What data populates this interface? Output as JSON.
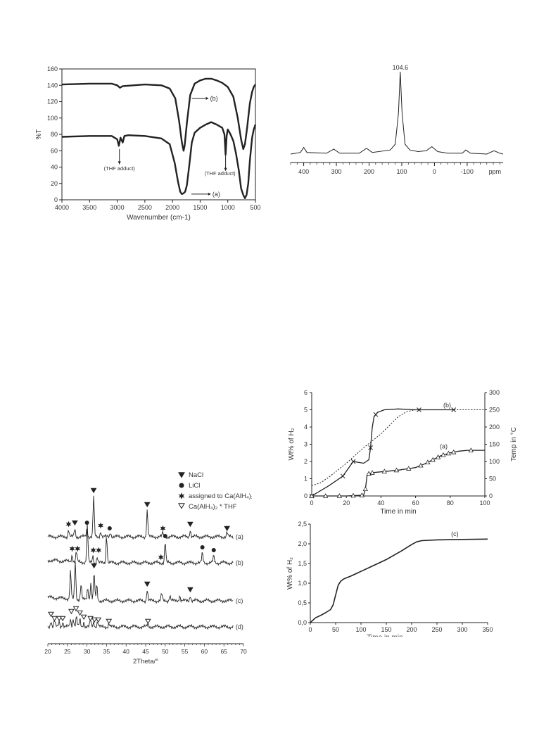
{
  "colors": {
    "ink": "#222222",
    "axis": "#333333"
  },
  "icons": {
    "nacl": "filled-down-triangle",
    "licl": "filled-circle",
    "ca_alh4": "six-point-star",
    "ca_thf": "open-down-triangle"
  },
  "chart_data": [
    {
      "id": "ir",
      "type": "line",
      "title": "",
      "xlabel": "Wavenumber (cm-1)",
      "ylabel": "%T",
      "xlim": [
        4000,
        500
      ],
      "ylim": [
        0,
        160
      ],
      "xticks": [
        "4000",
        "3500",
        "3000",
        "2500",
        "2000",
        "1500",
        "1000",
        "500"
      ],
      "yticks": [
        "0",
        "20",
        "40",
        "60",
        "80",
        "100",
        "120",
        "140",
        "160"
      ],
      "annotations": [
        "(THF adduct)",
        "(THF adduct)",
        "(b)",
        "(a)"
      ],
      "series": [
        {
          "name": "(b)",
          "x": [
            4000,
            3500,
            3100,
            3000,
            2950,
            2900,
            2500,
            2200,
            2050,
            1950,
            1880,
            1830,
            1800,
            1780,
            1740,
            1680,
            1600,
            1500,
            1400,
            1300,
            1200,
            1100,
            1000,
            900,
            820,
            760,
            720,
            690,
            650,
            600,
            560,
            530,
            500
          ],
          "y": [
            141,
            142,
            142,
            140,
            137,
            139,
            141,
            140,
            136,
            124,
            96,
            70,
            60,
            66,
            94,
            128,
            142,
            146,
            148,
            148,
            146,
            143,
            138,
            126,
            100,
            74,
            62,
            68,
            88,
            118,
            132,
            138,
            141
          ]
        },
        {
          "name": "(a)",
          "x": [
            4000,
            3500,
            3100,
            3000,
            2970,
            2940,
            2900,
            2870,
            2800,
            2500,
            2200,
            2050,
            1960,
            1900,
            1860,
            1830,
            1800,
            1770,
            1740,
            1700,
            1650,
            1600,
            1500,
            1400,
            1300,
            1200,
            1100,
            1060,
            1040,
            1020,
            1000,
            950,
            900,
            850,
            800,
            760,
            720,
            690,
            660,
            630,
            600,
            560,
            530,
            500
          ],
          "y": [
            77,
            78,
            78,
            74,
            66,
            76,
            70,
            78,
            79,
            78,
            75,
            68,
            45,
            22,
            10,
            7,
            8,
            10,
            18,
            40,
            70,
            82,
            88,
            92,
            95,
            92,
            88,
            80,
            55,
            78,
            86,
            80,
            72,
            56,
            36,
            14,
            6,
            2,
            6,
            20,
            48,
            76,
            86,
            92
          ]
        }
      ]
    },
    {
      "id": "nmr",
      "type": "line",
      "title": "",
      "xlabel": "ppm",
      "xlim": [
        440,
        -210
      ],
      "xticks": [
        "400",
        "300",
        "200",
        "100",
        "0",
        "-100"
      ],
      "peak_label": "104.6",
      "series": [
        {
          "name": "",
          "x": [
            440,
            410,
            400,
            390,
            330,
            308,
            290,
            230,
            208,
            190,
            135,
            120,
            110,
            104.6,
            99,
            90,
            75,
            50,
            25,
            8,
            -10,
            -40,
            -85,
            -96,
            -110,
            -160,
            -182,
            -200,
            -210
          ],
          "y": [
            0.0,
            0.02,
            0.08,
            0.02,
            0.01,
            0.06,
            0.01,
            0.01,
            0.07,
            0.02,
            0.05,
            0.12,
            0.5,
            1.0,
            0.5,
            0.12,
            0.05,
            0.03,
            0.04,
            0.09,
            0.03,
            0.01,
            0.01,
            0.05,
            0.01,
            0.0,
            0.04,
            0.01,
            0.0
          ]
        }
      ]
    },
    {
      "id": "xrd",
      "type": "line",
      "title": "",
      "xlabel": "2Theta/°",
      "xlim": [
        20,
        70
      ],
      "xticks": [
        "20",
        "25",
        "30",
        "35",
        "40",
        "45",
        "50",
        "55",
        "60",
        "65",
        "70"
      ],
      "legend": [
        "NaCl",
        "LiCl",
        "assigned to Ca(AlH₄)₂",
        "Ca(AlH₄)₂ * THF"
      ],
      "series": [
        {
          "name": "(a)",
          "peaks": [
            [
              25.3,
              10
            ],
            [
              26.9,
              12
            ],
            [
              30.0,
              12
            ],
            [
              31.7,
              58
            ],
            [
              33.5,
              8
            ],
            [
              36.0,
              7
            ],
            [
              45.4,
              38
            ],
            [
              49.4,
              6
            ],
            [
              56.4,
              10
            ],
            [
              65.8,
              6
            ]
          ]
        },
        {
          "name": "(b)",
          "peaks": [
            [
              26.2,
              10
            ],
            [
              27.3,
              14
            ],
            [
              30.1,
              55
            ],
            [
              31.5,
              10
            ],
            [
              32.6,
              8
            ],
            [
              35.0,
              40
            ],
            [
              50.0,
              30
            ],
            [
              59.5,
              14
            ],
            [
              62.4,
              10
            ]
          ]
        },
        {
          "name": "(c)",
          "peaks": [
            [
              25.8,
              40
            ],
            [
              27.0,
              55
            ],
            [
              28.5,
              22
            ],
            [
              30.2,
              18
            ],
            [
              31.0,
              25
            ],
            [
              31.8,
              40
            ],
            [
              32.5,
              22
            ],
            [
              45.4,
              16
            ],
            [
              49.1,
              10
            ],
            [
              51.2,
              8
            ],
            [
              53.7,
              8
            ],
            [
              56.4,
              8
            ]
          ]
        },
        {
          "name": "(d)",
          "peaks": [
            [
              20.8,
              10
            ],
            [
              21.7,
              10
            ],
            [
              22.9,
              9
            ],
            [
              23.8,
              8
            ],
            [
              25.8,
              12
            ],
            [
              26.5,
              14
            ],
            [
              27.3,
              16
            ],
            [
              28.2,
              12
            ],
            [
              29.2,
              8
            ],
            [
              30.9,
              10
            ],
            [
              31.7,
              8
            ],
            [
              32.7,
              8
            ],
            [
              35.6,
              5
            ],
            [
              45.6,
              5
            ]
          ]
        }
      ]
    },
    {
      "id": "tpd",
      "type": "line",
      "title": "",
      "xlabel": "Time in min",
      "ylabel": "Wt% of H₂",
      "ylabel2": "Temp in °C",
      "xlim": [
        0,
        100
      ],
      "ylim": [
        0,
        6
      ],
      "ylim2": [
        0,
        300
      ],
      "xticks": [
        "0",
        "20",
        "40",
        "60",
        "80",
        "100"
      ],
      "yticks": [
        "0",
        "1",
        "2",
        "3",
        "4",
        "5",
        "6"
      ],
      "yticks2": [
        "0",
        "50",
        "100",
        "150",
        "200",
        "250",
        "300"
      ],
      "series": [
        {
          "name": "(b)",
          "marker": "x",
          "x": [
            0,
            10,
            18,
            24,
            30,
            33,
            34,
            35,
            36,
            38,
            42,
            50,
            60,
            70,
            80,
            82
          ],
          "y": [
            0,
            0.6,
            1.15,
            2.0,
            1.9,
            2.1,
            2.8,
            4.0,
            4.6,
            4.85,
            5.0,
            5.05,
            5.0,
            5.0,
            5.0,
            5.0
          ],
          "markers_x": [
            0,
            18,
            24,
            34,
            37,
            62,
            82
          ]
        },
        {
          "name": "(a)",
          "marker": "triangle",
          "x": [
            0,
            20,
            30,
            31,
            32,
            33,
            35,
            40,
            50,
            60,
            65,
            70,
            75,
            80,
            85,
            90,
            100
          ],
          "y": [
            0,
            0,
            0.05,
            0.4,
            1.2,
            1.3,
            1.35,
            1.4,
            1.5,
            1.65,
            1.85,
            2.1,
            2.35,
            2.5,
            2.6,
            2.65,
            2.65
          ],
          "markers_x": [
            0,
            8,
            16,
            24,
            29,
            31,
            33,
            35,
            42,
            49,
            56,
            63,
            67,
            70,
            73,
            76,
            79,
            82,
            92
          ]
        },
        {
          "name": "temperature",
          "dashed": true,
          "axis": "right",
          "x": [
            0,
            5,
            10,
            20,
            30,
            40,
            45,
            50,
            55,
            60,
            70,
            80,
            100
          ],
          "y": [
            30,
            38,
            55,
            95,
            140,
            180,
            205,
            230,
            245,
            250,
            250,
            250,
            250
          ]
        }
      ]
    },
    {
      "id": "iso",
      "type": "line",
      "title": "",
      "xlabel": "Time in min",
      "ylabel": "Wt% of H₂",
      "xlim": [
        0,
        350
      ],
      "ylim": [
        0,
        2.5
      ],
      "xticks": [
        "0",
        "50",
        "100",
        "150",
        "200",
        "250",
        "300",
        "350"
      ],
      "yticks": [
        "0,0",
        "0,5",
        "1,0",
        "1,5",
        "2,0",
        "2,5"
      ],
      "series": [
        {
          "name": "(c)",
          "x": [
            0,
            10,
            20,
            30,
            40,
            45,
            50,
            55,
            60,
            65,
            70,
            80,
            100,
            120,
            150,
            180,
            200,
            210,
            220,
            250,
            300,
            350
          ],
          "y": [
            0,
            0.12,
            0.18,
            0.25,
            0.33,
            0.45,
            0.7,
            0.95,
            1.05,
            1.1,
            1.13,
            1.18,
            1.3,
            1.42,
            1.6,
            1.82,
            1.98,
            2.05,
            2.08,
            2.1,
            2.11,
            2.12
          ]
        }
      ]
    }
  ]
}
